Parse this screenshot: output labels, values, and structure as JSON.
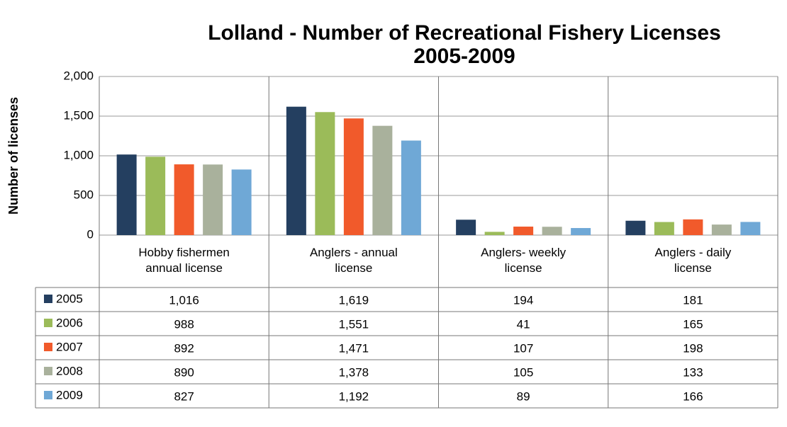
{
  "chart_data": {
    "type": "bar",
    "title": "Lolland - Number of Recreational Fishery Licenses\n2005-2009",
    "y_axis_label": "Number of licenses",
    "categories": [
      "Hobby fishermen\nannual license",
      "Anglers - annual\nlicense",
      "Anglers- weekly\nlicense",
      "Anglers - daily\nlicense"
    ],
    "series": [
      {
        "name": "2005",
        "color": "#243f60",
        "values": [
          1016,
          1619,
          194,
          181
        ],
        "value_labels": [
          "1,016",
          "1,619",
          "194",
          "181"
        ]
      },
      {
        "name": "2006",
        "color": "#9bbb59",
        "values": [
          988,
          1551,
          41,
          165
        ],
        "value_labels": [
          "988",
          "1,551",
          "41",
          "165"
        ]
      },
      {
        "name": "2007",
        "color": "#f15a2b",
        "values": [
          892,
          1471,
          107,
          198
        ],
        "value_labels": [
          "892",
          "1,471",
          "107",
          "198"
        ]
      },
      {
        "name": "2008",
        "color": "#a9b19c",
        "values": [
          890,
          1378,
          105,
          133
        ],
        "value_labels": [
          "890",
          "1,378",
          "105",
          "133"
        ]
      },
      {
        "name": "2009",
        "color": "#6fa8d6",
        "values": [
          827,
          1192,
          89,
          166
        ],
        "value_labels": [
          "827",
          "1,192",
          "89",
          "166"
        ]
      }
    ],
    "ylim": [
      0,
      2000
    ],
    "yticks": [
      0,
      500,
      {
        "value": 1000,
        "label": "1,000"
      },
      {
        "value": 1500,
        "label": "1,500"
      },
      {
        "value": 2000,
        "label": "2,000"
      }
    ],
    "grid": true
  }
}
